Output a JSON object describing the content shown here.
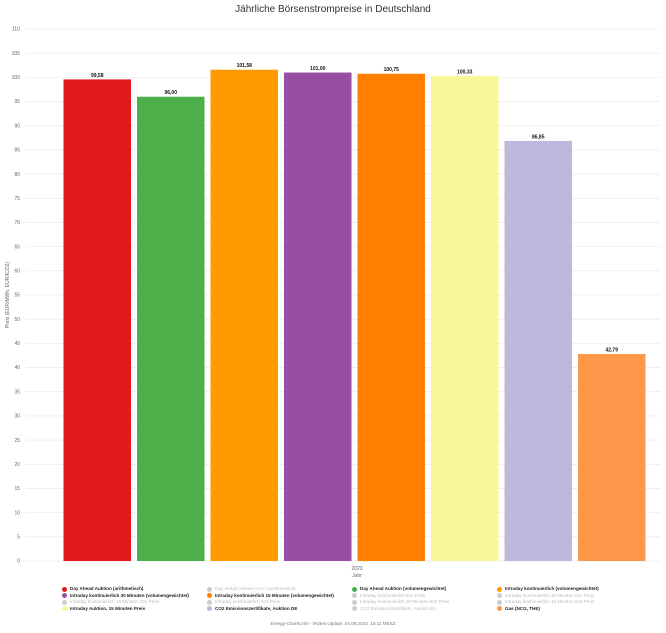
{
  "title": "Jährliche Börsenstrompreise in Deutschland",
  "footer": "Energy-Charts.info - letztes Update: 04.08.2023, 15:11 MESZ",
  "chart_data": {
    "type": "bar",
    "title": "Jährliche Börsenstrompreise in Deutschland",
    "xlabel": "Jahr",
    "ylabel": "Preis (EUR/MWh, EUR/tCO2)",
    "category": "2023",
    "ylim": [
      0,
      110
    ],
    "yticks": [
      0,
      5,
      10,
      15,
      20,
      25,
      30,
      35,
      40,
      45,
      50,
      55,
      60,
      65,
      70,
      75,
      80,
      85,
      90,
      95,
      100,
      105,
      110
    ],
    "grid": true,
    "series": [
      {
        "name": "Day Ahead Auktion (arithmetisch)",
        "value": 99.58,
        "label": "99,58",
        "color": "#e31a1c"
      },
      {
        "name": "Day Ahead Auktion (volumengewichtet)",
        "value": 96.0,
        "label": "96,00",
        "color": "#4daf4a"
      },
      {
        "name": "Intraday kontinuierlich (volumengewichtet)",
        "value": 101.58,
        "label": "101,58",
        "color": "#ff9a00"
      },
      {
        "name": "Intraday kontinuierlich 30 Minuten (volumengewichtet)",
        "value": 101.0,
        "label": "101,00",
        "color": "#984ea3"
      },
      {
        "name": "Intraday kontinuierlich 15 Minuten (volumengewichtet)",
        "value": 100.75,
        "label": "100,75",
        "color": "#ff7f00"
      },
      {
        "name": "Intraday Auktion, 15 Minuten Preis",
        "value": 100.33,
        "label": "100,33",
        "color": "#f8f89a"
      },
      {
        "name": "CO2 Emissionszertifikate, Auktion DE",
        "value": 86.85,
        "label": "86,85",
        "color": "#beb9dc"
      },
      {
        "name": "Gas (NCG, THE)",
        "value": 42.79,
        "label": "42,79",
        "color": "#fd974a"
      }
    ]
  },
  "legend": [
    {
      "label": "Day Ahead Auktion (arithmetisch)",
      "color": "#e31a1c",
      "active": true
    },
    {
      "label": "Day Ahead Auktion CH-H (arithmetisch)",
      "color": "#cccccc",
      "active": false
    },
    {
      "label": "Day Ahead Auktion (volumengewichtet)",
      "color": "#4daf4a",
      "active": true
    },
    {
      "label": "Intraday kontinuierlich (volumengewichtet)",
      "color": "#ff9a00",
      "active": true
    },
    {
      "label": "Intraday kontinuierlich 30 Minuten (volumengewichtet)",
      "color": "#984ea3",
      "active": true
    },
    {
      "label": "Intraday kontinuierlich 15 Minuten (volumengewichtet)",
      "color": "#ff7f00",
      "active": true
    },
    {
      "label": "Intraday kontinuierlich ID1-Preis",
      "color": "#cccccc",
      "active": false
    },
    {
      "label": "Intraday kontinuierlich 30 Minuten ID1-Preis",
      "color": "#cccccc",
      "active": false
    },
    {
      "label": "Intraday kontinuierlich 15 Minuten ID1-Preis",
      "color": "#cccccc",
      "active": false
    },
    {
      "label": "Intraday kontinuierlich ID3-Preis",
      "color": "#cccccc",
      "active": false
    },
    {
      "label": "Intraday kontinuierlich 30 Minuten ID3-Preis",
      "color": "#cccccc",
      "active": false
    },
    {
      "label": "Intraday kontinuierlich 15 Minuten ID3-Preis",
      "color": "#cccccc",
      "active": false
    },
    {
      "label": "Intraday Auktion, 15 Minuten Preis",
      "color": "#f8f89a",
      "active": true
    },
    {
      "label": "CO2 Emissionszertifikate, Auktion DE",
      "color": "#beb9dc",
      "active": true
    },
    {
      "label": "CO2 Emissionszertifikate, Auktion EU",
      "color": "#cccccc",
      "active": false
    },
    {
      "label": "Gas (NCG, THE)",
      "color": "#fd974a",
      "active": true
    }
  ]
}
